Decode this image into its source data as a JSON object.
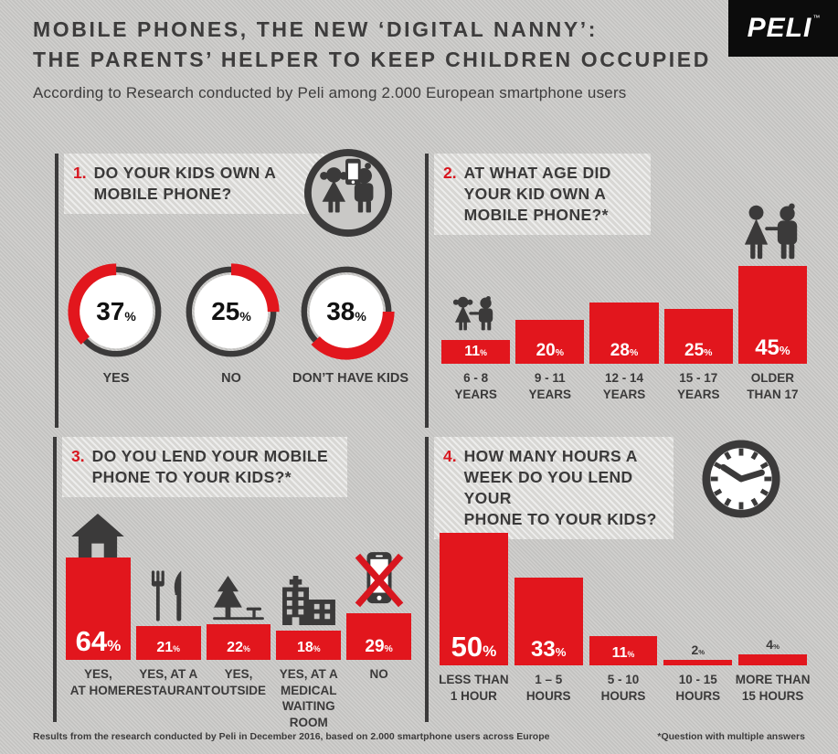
{
  "header": {
    "title_line1": "MOBILE PHONES, THE NEW ‘DIGITAL NANNY’:",
    "title_line2": "THE PARENTS’ HELPER TO KEEP CHILDREN OCCUPIED",
    "subtitle": "According to Research conducted by Peli among 2.000 European smartphone users",
    "logo_text": "PELI",
    "logo_tm": "™"
  },
  "colors": {
    "accent_red": "#e2161d",
    "dark_gray": "#3b3a3a",
    "background_gray": "#c9c8c6",
    "logo_black": "#0c0c0c",
    "white": "#ffffff"
  },
  "percent_sign": "%",
  "chart_data": [
    {
      "id": "q1",
      "number": "1.",
      "title": "DO YOUR KIDS OWN A\nMOBILE PHONE?",
      "type": "donut",
      "unit": "%",
      "categories": [
        "YES",
        "NO",
        "DON’T HAVE KIDS"
      ],
      "values": [
        37,
        25,
        38
      ],
      "icon": "kids-with-phone-icon"
    },
    {
      "id": "q2",
      "number": "2.",
      "title": "AT WHAT AGE DID\nYOUR KID OWN A\nMOBILE PHONE?*",
      "type": "bar",
      "unit": "%",
      "categories": [
        "6 - 8\nYEARS",
        "9 - 11\nYEARS",
        "12 - 14\nYEARS",
        "15 - 17\nYEARS",
        "OLDER\nTHAN 17"
      ],
      "values": [
        11,
        20,
        28,
        25,
        45
      ],
      "icons": [
        "young-kids-icon",
        "",
        "",
        "",
        "grown-up-couple-icon"
      ]
    },
    {
      "id": "q3",
      "number": "3.",
      "title": "DO YOU LEND YOUR MOBILE\nPHONE TO YOUR KIDS?*",
      "type": "bar",
      "unit": "%",
      "categories": [
        "YES,\nAT HOME",
        "YES, AT A\nRESTAURANT",
        "YES,\nOUTSIDE",
        "YES, AT A\nMEDICAL\nWAITING ROOM",
        "NO"
      ],
      "values": [
        64,
        21,
        22,
        18,
        29
      ],
      "icons": [
        "house-icon",
        "restaurant-icon",
        "tree-icon",
        "hospital-icon",
        "no-phone-icon"
      ]
    },
    {
      "id": "q4",
      "number": "4.",
      "title": "HOW MANY HOURS A\nWEEK DO YOU LEND YOUR\nPHONE TO YOUR KIDS?",
      "type": "bar",
      "unit": "%",
      "categories": [
        "LESS THAN\n1 HOUR",
        "1 – 5\nHOURS",
        "5 - 10\nHOURS",
        "10 - 15\nHOURS",
        "MORE THAN\n15 HOURS"
      ],
      "values": [
        50,
        33,
        11,
        2,
        4
      ],
      "icon": "clock-icon"
    }
  ],
  "footer": {
    "left": "Results from the research conducted by Peli in December 2016, based on 2.000 smartphone users across Europe",
    "right": "*Question with multiple answers"
  }
}
